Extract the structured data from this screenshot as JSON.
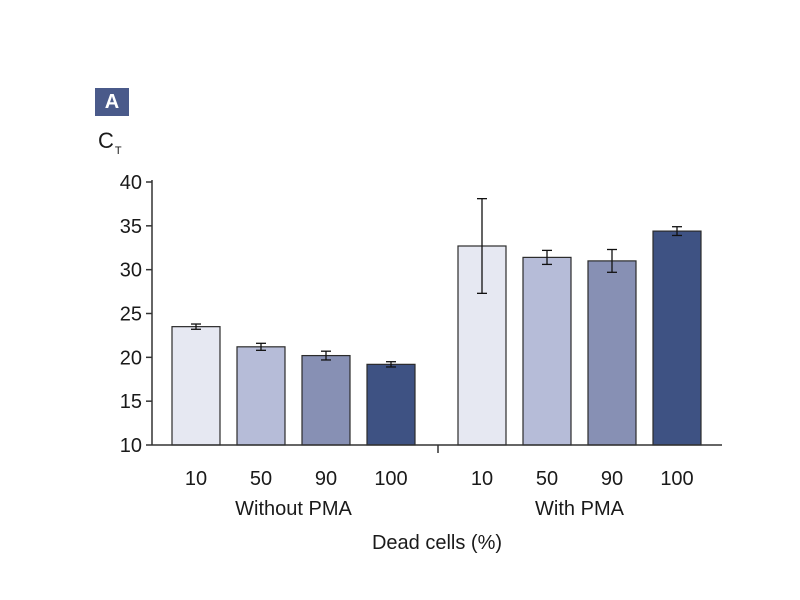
{
  "panel_label": "A",
  "colors": {
    "badge": "#4a5a8a",
    "axis": "#333333",
    "bar_stroke": "#2b2b2b",
    "bars": [
      "#e6e8f2",
      "#b6bcd8",
      "#8790b4",
      "#3e5283"
    ]
  },
  "chart_data": {
    "type": "bar",
    "title": "",
    "ylabel_main": "C",
    "ylabel_sub": "T",
    "xlabel": "Dead cells (%)",
    "ylim": [
      10,
      40
    ],
    "yticks": [
      10,
      15,
      20,
      25,
      30,
      35,
      40
    ],
    "groups": [
      {
        "name": "Without PMA",
        "categories": [
          "10",
          "50",
          "90",
          "100"
        ],
        "values": [
          23.5,
          21.2,
          20.2,
          19.2
        ],
        "errors": [
          0.3,
          0.4,
          0.5,
          0.3
        ]
      },
      {
        "name": "With PMA",
        "categories": [
          "10",
          "50",
          "90",
          "100"
        ],
        "values": [
          32.7,
          31.4,
          31.0,
          34.4
        ],
        "errors": [
          5.4,
          0.8,
          1.3,
          0.5
        ]
      }
    ],
    "grid": false,
    "legend": "none"
  }
}
